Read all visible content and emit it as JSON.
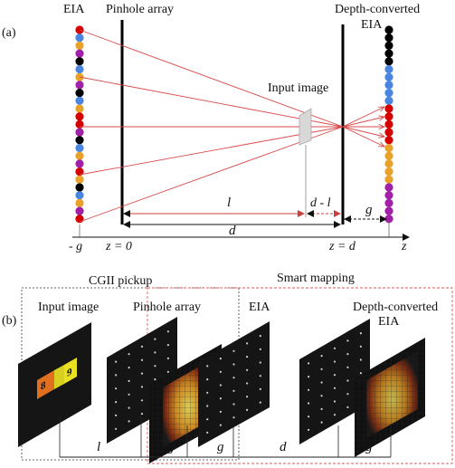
{
  "panel_a": {
    "label": "(a)",
    "eia": "EIA",
    "pinhole_array": "Pinhole array",
    "depth_converted_line1": "Depth-converted",
    "depth_converted_line2": "EIA",
    "input_image": "Input image",
    "dim_l": "l",
    "dim_d_minus_l": "d - l",
    "dim_d": "d",
    "dim_g": "g",
    "axis_neg_g": "- g",
    "axis_z0": "z = 0",
    "axis_zd": "z = d",
    "axis_z": "z",
    "left_dot_colors": [
      "red",
      "blue",
      "orange",
      "purple",
      "black",
      "blue",
      "orange",
      "purple",
      "black",
      "blue",
      "orange",
      "red",
      "red",
      "purple",
      "black",
      "blue",
      "orange",
      "purple",
      "red",
      "orange",
      "black",
      "blue",
      "orange",
      "purple",
      "red"
    ],
    "right_dot_colors": [
      "black",
      "black",
      "black",
      "black",
      "black",
      "blue",
      "blue",
      "blue",
      "blue",
      "blue",
      "red",
      "red",
      "red",
      "red",
      "red",
      "orange",
      "orange",
      "orange",
      "orange",
      "orange",
      "purple",
      "purple",
      "purple",
      "purple",
      "purple"
    ]
  },
  "panel_b": {
    "label": "(b)",
    "cgii_pickup": "CGII pickup",
    "smart_mapping": "Smart mapping",
    "input_image": "Input image",
    "pinhole_array": "Pinhole array",
    "eia": "EIA",
    "depth_converted_line1": "Depth-converted",
    "depth_converted_line2": "EIA",
    "tile_texts": [
      "8",
      "9"
    ],
    "dim_l": "l",
    "dim_g1": "g",
    "dim_g2": "g",
    "dim_d": "d",
    "dim_g3": "g"
  },
  "colors": {
    "red": "#d40000",
    "blue": "#4a86e0",
    "orange": "#e8a22a",
    "purple": "#a020a8",
    "black": "#000000",
    "ray": "#d84a4a",
    "dim": "#c84040",
    "frame": "#e05a5a"
  }
}
